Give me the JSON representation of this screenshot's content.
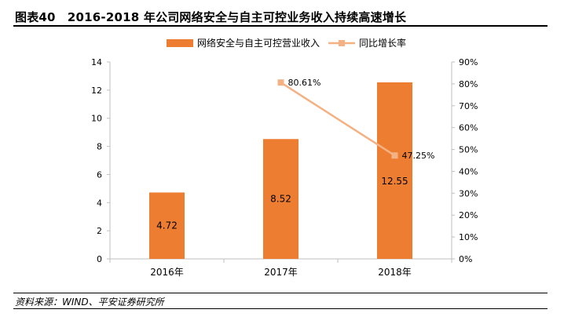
{
  "title": "图表40　2016-2018 年公司网络安全与自主可控业务收入持续高速增长",
  "source": "资料来源：WIND、平安证券研究所",
  "colors": {
    "bar": "#ED7D31",
    "line": "#F4B183",
    "axis": "#BFBFBF"
  },
  "chart_data": {
    "type": "bar+line",
    "categories": [
      "2016年",
      "2017年",
      "2018年"
    ],
    "series": [
      {
        "name": "网络安全与自主可控营业收入",
        "type": "bar",
        "axis": "left",
        "values": [
          4.72,
          8.52,
          12.55
        ],
        "labels": [
          "4.72",
          "8.52",
          "12.55"
        ]
      },
      {
        "name": "同比增长率",
        "type": "line",
        "axis": "right",
        "values": [
          null,
          80.61,
          47.25
        ],
        "labels": [
          "",
          "80.61%",
          "47.25%"
        ]
      }
    ],
    "y_left": {
      "min": 0,
      "max": 14,
      "ticks": [
        "0",
        "2",
        "4",
        "6",
        "8",
        "10",
        "12",
        "14"
      ],
      "tick_values": [
        0,
        2,
        4,
        6,
        8,
        10,
        12,
        14
      ]
    },
    "y_right": {
      "min": 0,
      "max": 90,
      "ticks": [
        "0%",
        "10%",
        "20%",
        "30%",
        "40%",
        "50%",
        "60%",
        "70%",
        "80%",
        "90%"
      ],
      "tick_values": [
        0,
        10,
        20,
        30,
        40,
        50,
        60,
        70,
        80,
        90
      ]
    },
    "legend": "top-center"
  }
}
